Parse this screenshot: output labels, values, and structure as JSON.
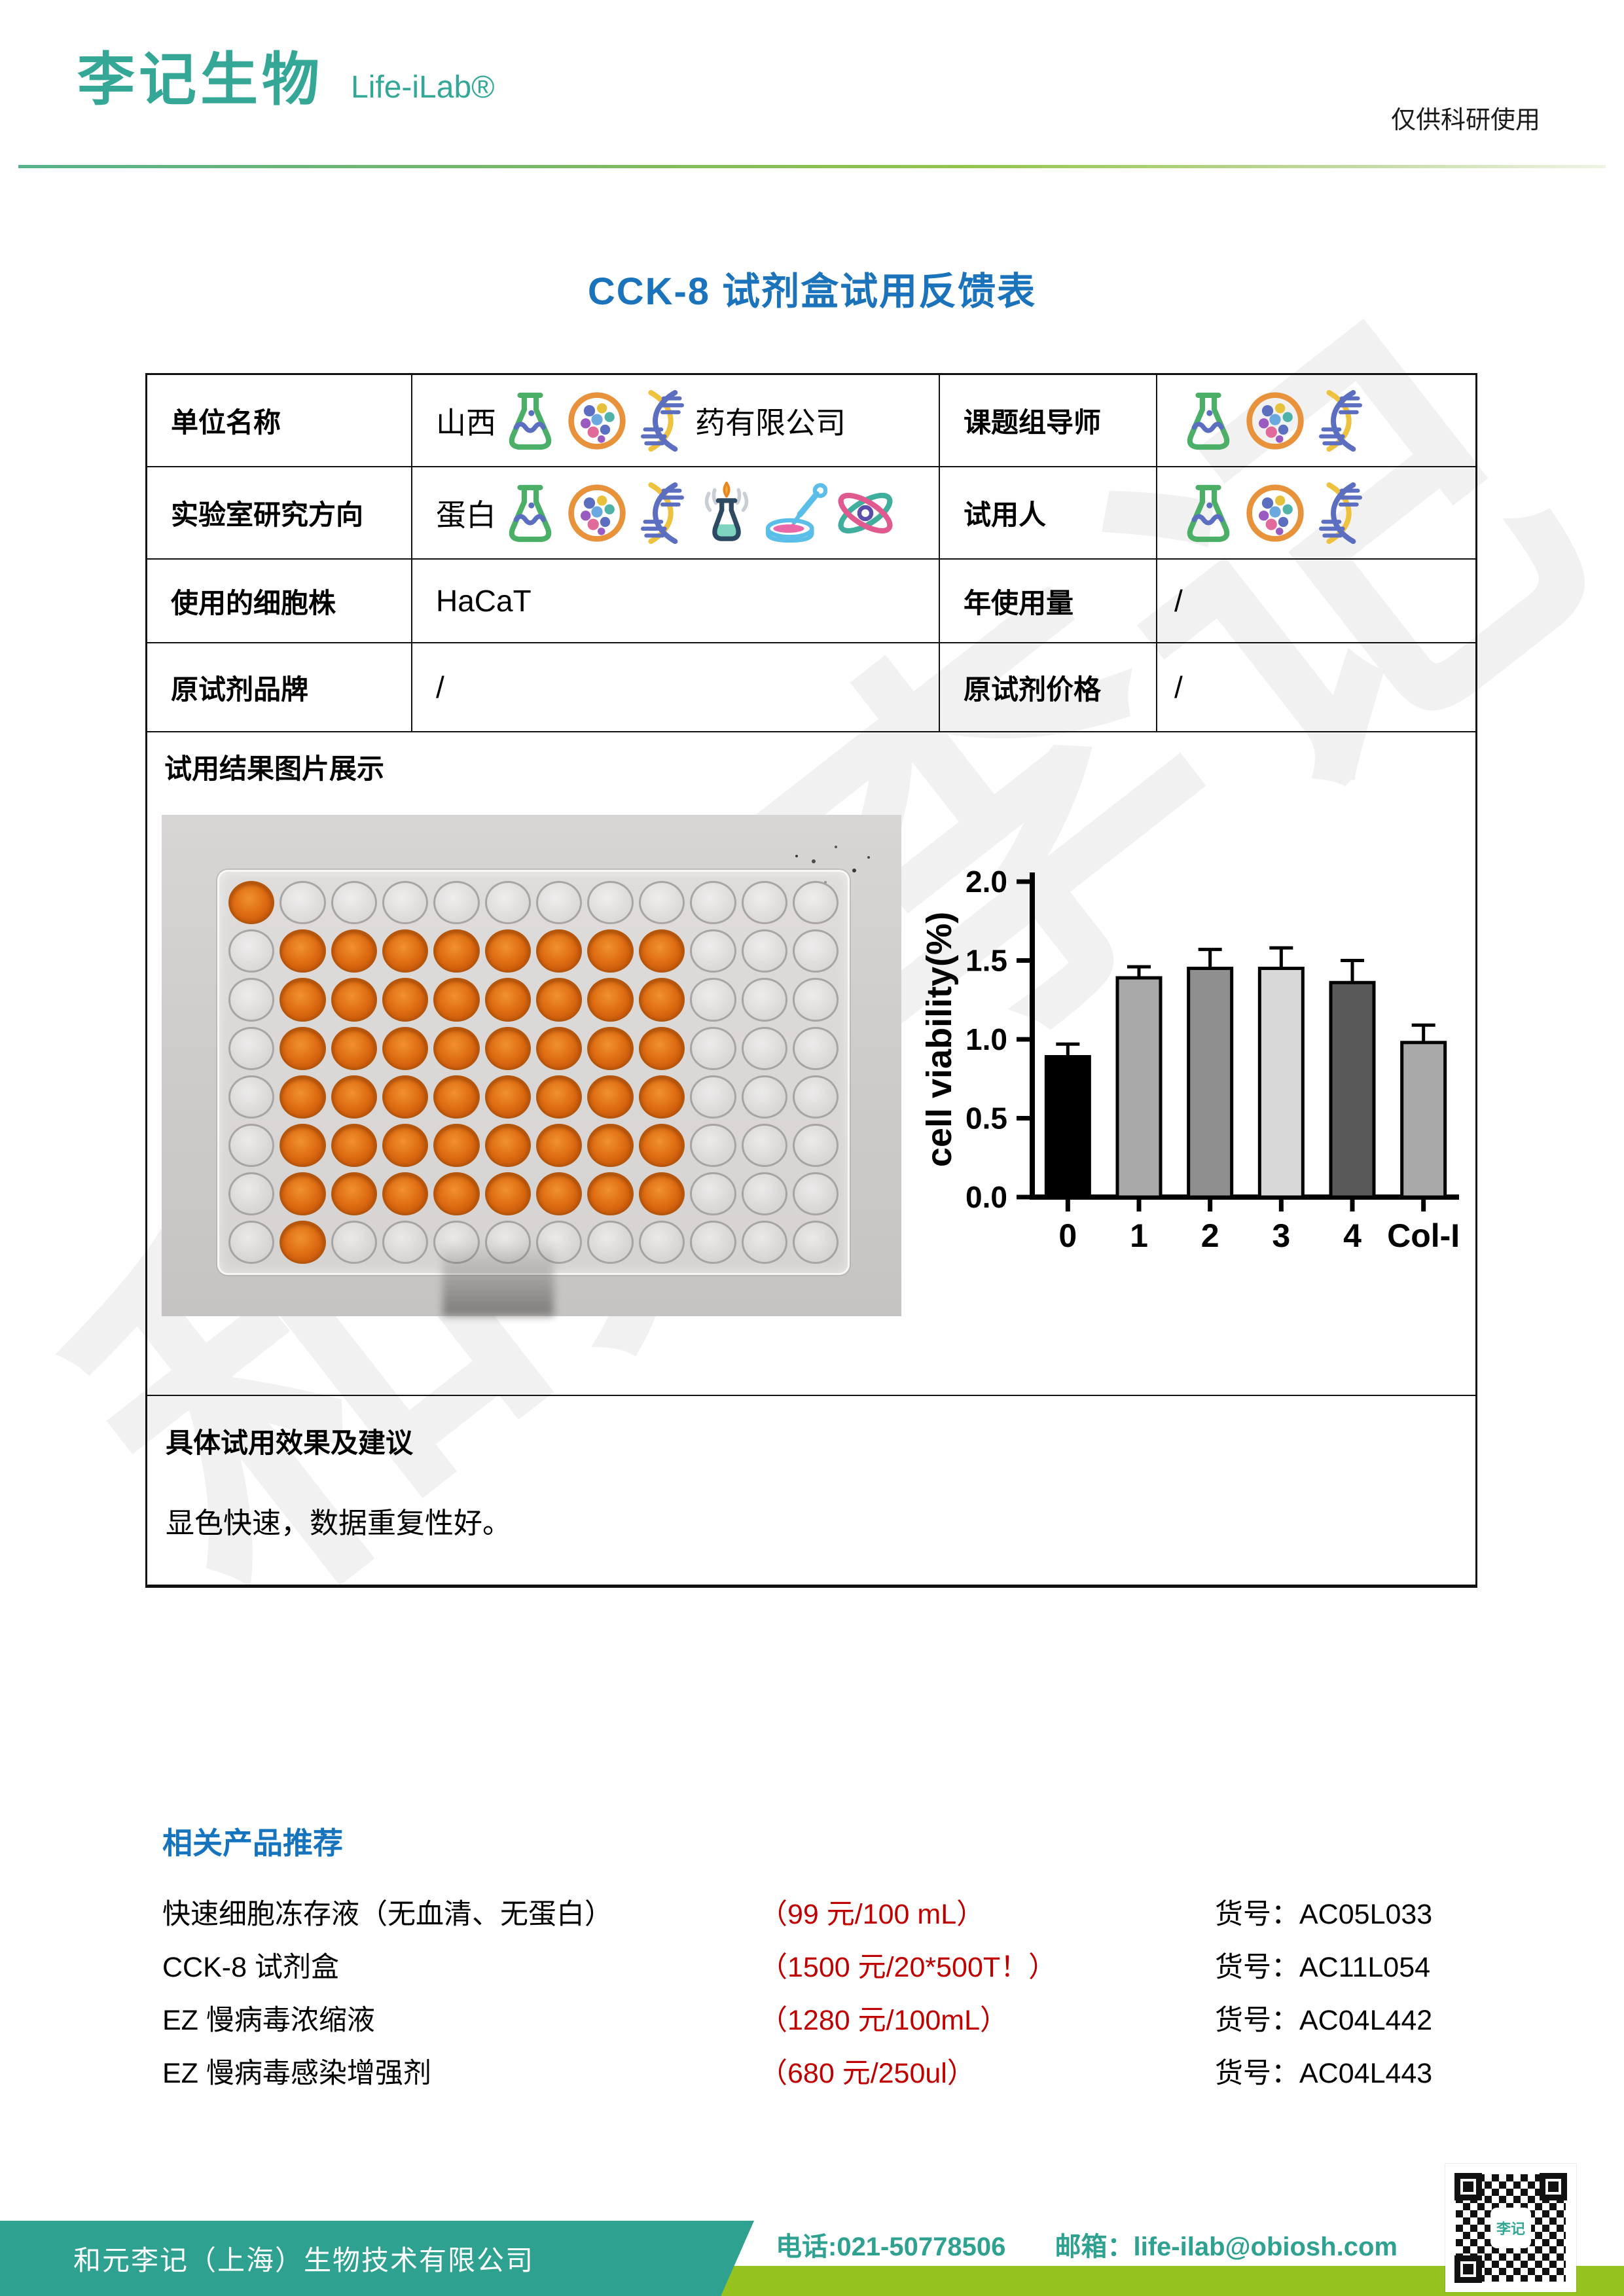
{
  "colors": {
    "teal": "#35A796",
    "blue": "#1A73BB",
    "red": "#C00000",
    "green_band": "#96C21F",
    "footer_teal": "#2FA191"
  },
  "watermark": "和元李记",
  "header": {
    "logo_cn": "李记生物",
    "logo_en": "Life-iLab®",
    "note": "仅供科研使用"
  },
  "title": "CCK-8 试剂盒试用反馈表",
  "info_table": {
    "rows": [
      {
        "label": "单位名称",
        "value_prefix": "山西",
        "value_icons": [
          "flask-icon",
          "cells-icon",
          "dna-icon"
        ],
        "value_suffix": "药有限公司",
        "label2": "课题组导师",
        "value2_prefix": "",
        "value2_icons": [
          "flask-icon",
          "cells-icon",
          "dna-icon"
        ],
        "value2_suffix": ""
      },
      {
        "label": "实验室研究方向",
        "value_prefix": "蛋白",
        "value_icons": [
          "flask-icon",
          "cells-icon",
          "dna-icon",
          "burner-icon",
          "dropper-dish-icon",
          "atom-icon"
        ],
        "value_suffix": "",
        "label2": "试用人",
        "value2_prefix": "",
        "value2_icons": [
          "flask-icon",
          "cells-icon",
          "dna-icon"
        ],
        "value2_suffix": ""
      },
      {
        "label": "使用的细胞株",
        "value": "HaCaT",
        "label2": "年使用量",
        "value2": "/"
      },
      {
        "label": "原试剂品牌",
        "value": "/",
        "label2": "原试剂价格",
        "value2": "/"
      }
    ]
  },
  "results": {
    "heading": "试用结果图片展示",
    "plate": {
      "rows": 8,
      "cols": 12,
      "filled_block": {
        "row_start": 2,
        "row_end": 7,
        "col_start": 2,
        "col_end": 9
      },
      "extra_filled": [
        "A1",
        "H2"
      ]
    }
  },
  "chart_data": {
    "type": "bar",
    "categories": [
      "0",
      "1",
      "2",
      "3",
      "4",
      "Col-I"
    ],
    "values": [
      0.89,
      1.39,
      1.45,
      1.45,
      1.36,
      0.98
    ],
    "errors": [
      0.08,
      0.07,
      0.12,
      0.13,
      0.14,
      0.11
    ],
    "bar_colors": [
      "#000000",
      "#a9a9a9",
      "#8f8f8f",
      "#d8d8d8",
      "#595959",
      "#a9a9a9"
    ],
    "title": "",
    "xlabel": "",
    "ylabel": "cell viability(%)",
    "ylim": [
      0,
      2.0
    ],
    "yticks": [
      0.0,
      0.5,
      1.0,
      1.5,
      2.0
    ],
    "grid": false,
    "legend": false
  },
  "feedback": {
    "heading": "具体试用效果及建议",
    "text": "显色快速，数据重复性好。"
  },
  "products": {
    "heading": "相关产品推荐",
    "sku_prefix": "货号：",
    "items": [
      {
        "name": "快速细胞冻存液（无血清、无蛋白）",
        "price": "（99 元/100 mL）",
        "sku": "货号：AC05L033"
      },
      {
        "name": "CCK-8 试剂盒",
        "price": "（1500 元/20*500T！）",
        "sku": "货号：AC11L054"
      },
      {
        "name": "EZ 慢病毒浓缩液",
        "price": "（1280 元/100mL）",
        "sku": "货号：AC04L442"
      },
      {
        "name": "EZ 慢病毒感染增强剂",
        "price": "（680 元/250ul）",
        "sku": "货号：AC04L443"
      }
    ]
  },
  "footer": {
    "company": "和元李记（上海）生物技术有限公司",
    "phone": "电话:021-50778506",
    "email": "邮箱：life-ilab@obiosh.com",
    "qr_logo": "李记"
  }
}
